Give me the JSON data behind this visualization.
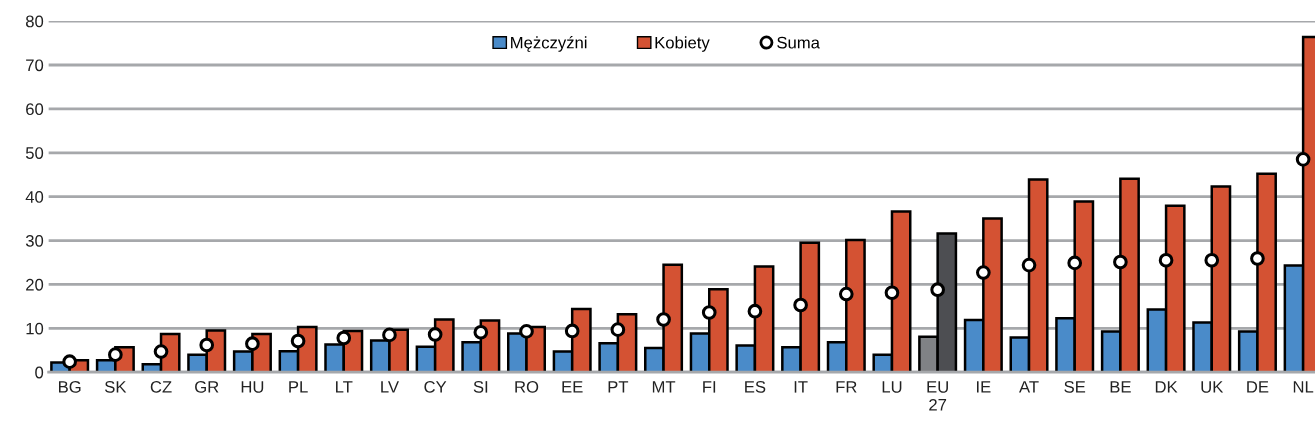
{
  "chart_data": {
    "type": "bar",
    "categories": [
      "BG",
      "SK",
      "CZ",
      "GR",
      "HU",
      "PL",
      "LT",
      "LV",
      "CY",
      "SI",
      "RO",
      "EE",
      "PT",
      "MT",
      "FI",
      "ES",
      "IT",
      "FR",
      "LU",
      "EU\n27",
      "IE",
      "AT",
      "SE",
      "BE",
      "DK",
      "UK",
      "DE",
      "NL"
    ],
    "series": [
      {
        "name": "Mężczyźni",
        "color": "#4a8bc9",
        "colors": [
          "#4a8bc9",
          "#4a8bc9",
          "#4a8bc9",
          "#4a8bc9",
          "#4a8bc9",
          "#4a8bc9",
          "#4a8bc9",
          "#4a8bc9",
          "#4a8bc9",
          "#4a8bc9",
          "#4a8bc9",
          "#4a8bc9",
          "#4a8bc9",
          "#4a8bc9",
          "#4a8bc9",
          "#4a8bc9",
          "#4a8bc9",
          "#4a8bc9",
          "#4a8bc9",
          "#808285",
          "#4a8bc9",
          "#4a8bc9",
          "#4a8bc9",
          "#4a8bc9",
          "#4a8bc9",
          "#4a8bc9",
          "#4a8bc9",
          "#4a8bc9"
        ],
        "values": [
          2.2,
          2.7,
          1.8,
          4.0,
          4.7,
          4.8,
          6.3,
          7.2,
          5.8,
          6.8,
          8.8,
          4.7,
          6.6,
          5.5,
          8.8,
          6.1,
          5.7,
          6.8,
          4.0,
          8.1,
          11.9,
          7.9,
          12.3,
          9.3,
          14.3,
          11.3,
          9.3,
          24.3
        ]
      },
      {
        "name": "Kobiety",
        "color": "#d45233",
        "colors": [
          "#d45233",
          "#d45233",
          "#d45233",
          "#d45233",
          "#d45233",
          "#d45233",
          "#d45233",
          "#d45233",
          "#d45233",
          "#d45233",
          "#d45233",
          "#d45233",
          "#d45233",
          "#d45233",
          "#d45233",
          "#d45233",
          "#d45233",
          "#d45233",
          "#d45233",
          "#4d4e52",
          "#d45233",
          "#d45233",
          "#d45233",
          "#d45233",
          "#d45233",
          "#d45233",
          "#d45233",
          "#d45233"
        ],
        "values": [
          2.7,
          5.7,
          8.7,
          9.5,
          8.7,
          10.3,
          9.4,
          9.7,
          12.0,
          11.8,
          10.3,
          14.4,
          13.2,
          24.5,
          18.9,
          24.1,
          29.5,
          30.1,
          36.6,
          31.6,
          35.0,
          43.9,
          38.9,
          44.1,
          37.9,
          42.3,
          45.2,
          76.4
        ]
      },
      {
        "name": "Suma",
        "type": "scatter",
        "color": "#ffffff",
        "values": [
          2.4,
          4.0,
          4.7,
          6.2,
          6.5,
          7.1,
          7.8,
          8.5,
          8.6,
          9.1,
          9.3,
          9.4,
          9.7,
          12.0,
          13.6,
          13.9,
          15.3,
          17.8,
          18.1,
          18.8,
          22.7,
          24.4,
          24.9,
          25.1,
          25.5,
          25.5,
          25.9,
          48.5
        ]
      }
    ],
    "ylim": [
      0,
      80
    ],
    "yticks": [
      0,
      10,
      20,
      30,
      40,
      50,
      60,
      70,
      80
    ],
    "grid": "y",
    "legend": "top",
    "marker": "circle"
  }
}
